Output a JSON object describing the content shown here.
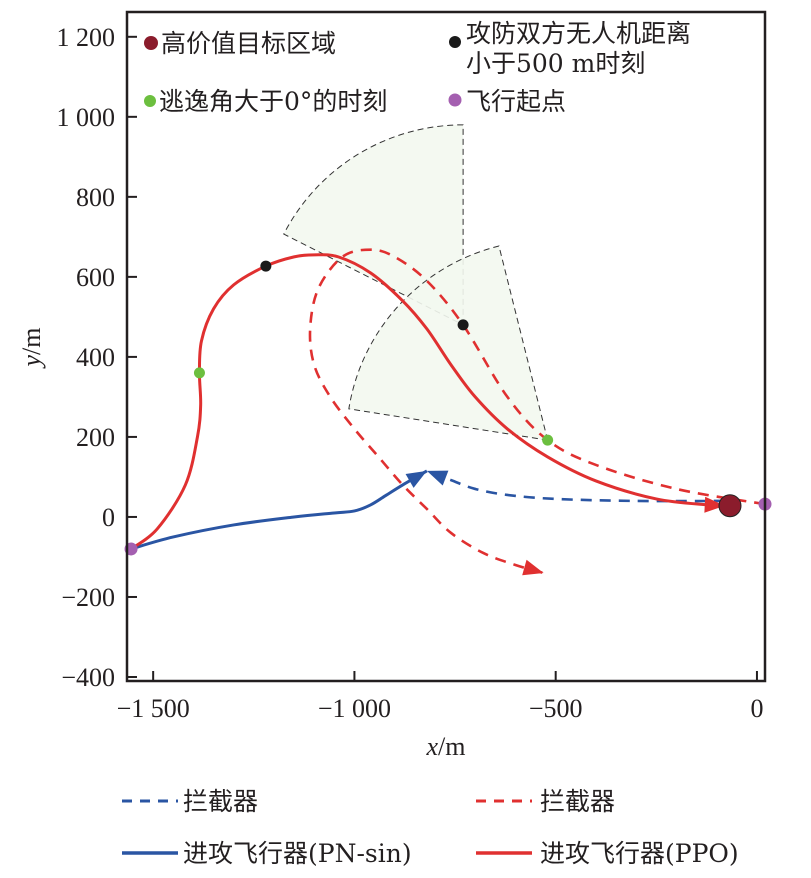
{
  "chart_data": {
    "type": "line",
    "title": "",
    "xlabel": "x/m",
    "xlabel_var": "x",
    "xlabel_unit": "/m",
    "ylabel": "y/m",
    "ylabel_var": "y",
    "ylabel_unit": "/m",
    "xlim": [
      -1565,
      20
    ],
    "ylim": [
      -410,
      1262
    ],
    "grid": false,
    "x_ticks": [
      -1500,
      -1000,
      -500,
      0
    ],
    "x_tick_labels": [
      "−1 500",
      "−1 000",
      "−500",
      "0"
    ],
    "y_ticks": [
      1200,
      1000,
      800,
      600,
      400,
      200,
      0,
      -200,
      -400
    ],
    "y_tick_labels": [
      "1 200",
      "1 000",
      "800",
      "600",
      "400",
      "200",
      "0",
      "−200",
      "−400"
    ],
    "series": [
      {
        "name": "拦截器",
        "label": "拦截器",
        "color": "#2a55a3",
        "style": "dashed",
        "arrow": true,
        "x": [
          -80,
          -300,
          -500,
          -620,
          -700,
          -760,
          -820
        ],
        "y": [
          40,
          40,
          45,
          55,
          70,
          92,
          115
        ]
      },
      {
        "name": "拦截器",
        "label": "拦截器",
        "color": "#e03030",
        "style": "dashed",
        "arrow": true,
        "x": [
          20,
          -200,
          -400,
          -520,
          -620,
          -730,
          -820,
          -900,
          -960,
          -1030,
          -1090,
          -1110,
          -1100,
          -1060,
          -1000,
          -940,
          -880,
          -820,
          -760,
          -680,
          -600,
          -530
        ],
        "y": [
          32,
          70,
          130,
          192,
          300,
          480,
          590,
          650,
          668,
          650,
          570,
          470,
          380,
          300,
          220,
          150,
          80,
          20,
          -40,
          -90,
          -120,
          -140
        ]
      },
      {
        "name": "进攻飞行器(PN-sin)",
        "label": "进攻飞行器(PN-sin)",
        "color": "#2a55a3",
        "style": "solid",
        "arrow": true,
        "x": [
          -1555,
          -1450,
          -1300,
          -1150,
          -1050,
          -1000,
          -960,
          -920,
          -880,
          -820
        ],
        "y": [
          -80,
          -50,
          -20,
          0,
          10,
          15,
          30,
          55,
          80,
          115
        ]
      },
      {
        "name": "进攻飞行器(PPO)",
        "label": "进攻飞行器(PPO)",
        "color": "#e03030",
        "style": "solid",
        "arrow": true,
        "x": [
          -1555,
          -1490,
          -1420,
          -1390,
          -1382,
          -1385,
          -1380,
          -1350,
          -1300,
          -1220,
          -1150,
          -1100,
          -1040,
          -960,
          -880,
          -820,
          -760,
          -700,
          -620,
          -520,
          -400,
          -250,
          -120,
          -80
        ],
        "y": [
          -80,
          -30,
          80,
          200,
          280,
          360,
          440,
          520,
          580,
          627,
          650,
          655,
          650,
          610,
          540,
          470,
          380,
          300,
          220,
          150,
          90,
          45,
          30,
          28
        ]
      }
    ],
    "markers": [
      {
        "name": "高价值目标区域",
        "label": "高价值目标区域",
        "color": "#8b1c2c",
        "points": [
          [
            -67,
            28
          ]
        ]
      },
      {
        "name": "攻防双方无人机距离小于500 m时刻",
        "label_line1": "攻防双方无人机距离",
        "label_line2": "小于500 m时刻",
        "color": "#1a1a1a",
        "points": [
          [
            -1220,
            627
          ],
          [
            -730,
            480
          ]
        ]
      },
      {
        "name": "逃逸角大于0°的时刻",
        "label": "逃逸角大于0°的时刻",
        "color": "#6cbf3f",
        "points": [
          [
            -1385,
            360
          ],
          [
            -520,
            192
          ]
        ]
      },
      {
        "name": "飞行起点",
        "label": "飞行起点",
        "color": "#a45fb0",
        "points": [
          [
            -1555,
            -80
          ],
          [
            20,
            32
          ]
        ]
      }
    ],
    "sectors": [
      {
        "center": [
          -730,
          480
        ],
        "radius": 500,
        "start_deg": 90,
        "end_deg": 153,
        "fill": "#f3f8f0"
      },
      {
        "center": [
          -520,
          192
        ],
        "radius": 500,
        "start_deg": 104,
        "end_deg": 171,
        "fill": "#f3f8f0"
      }
    ]
  }
}
